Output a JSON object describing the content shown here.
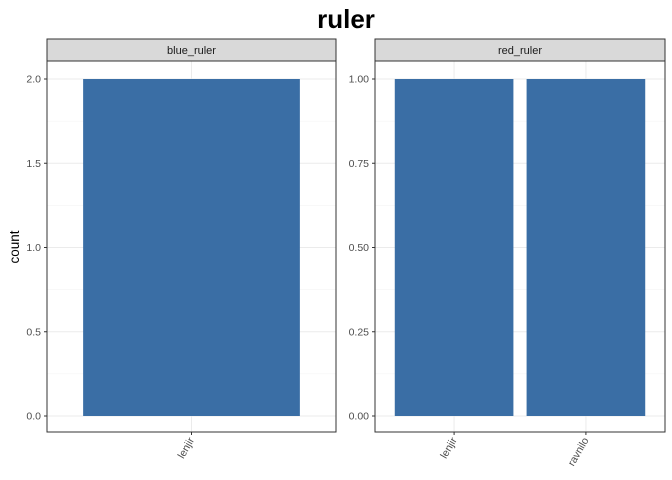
{
  "chart_data": {
    "type": "bar",
    "title": "ruler",
    "xlabel": "",
    "ylabel": "count",
    "bar_color": "#3A6EA5",
    "strip_fill": "#D9D9D9",
    "grid": true,
    "panels": [
      {
        "name": "blue_ruler",
        "categories": [
          "lenjir"
        ],
        "values": [
          2
        ],
        "ylim": [
          0,
          2
        ],
        "yticks": [
          0,
          0.5,
          1,
          1.5,
          2
        ],
        "ytick_labels": [
          "0.0",
          "0.5",
          "1.0",
          "1.5",
          "2.0"
        ]
      },
      {
        "name": "red_ruler",
        "categories": [
          "lenjir",
          "ravnilo"
        ],
        "values": [
          1,
          1
        ],
        "ylim": [
          0,
          1
        ],
        "yticks": [
          0,
          0.25,
          0.5,
          0.75,
          1
        ],
        "ytick_labels": [
          "0.00",
          "0.25",
          "0.50",
          "0.75",
          "1.00"
        ]
      }
    ]
  }
}
